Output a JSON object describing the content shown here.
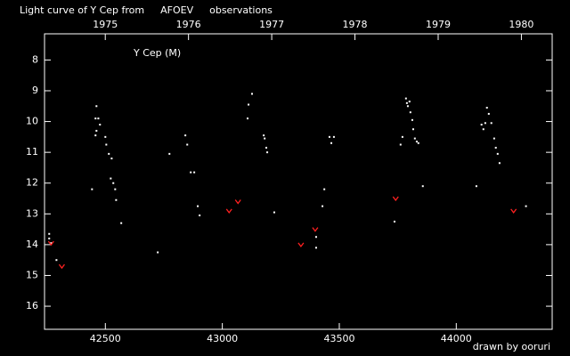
{
  "chart_data": {
    "type": "scatter",
    "title": [
      "Light curve of Y Cep from",
      "AFOEV",
      "observations"
    ],
    "title_colors": [
      "#ffffff",
      "#ffff00",
      "#ffffff"
    ],
    "annotation": "Y Cep (M)",
    "credit": "drawn by ooruri",
    "credit_color": "#00ffff",
    "background": "#000000",
    "axis_color": "#ffffff",
    "xlim": [
      42240,
      44410
    ],
    "xticks": [
      42500,
      43000,
      43500,
      44000
    ],
    "x2lim": [
      1974.27,
      1980.37
    ],
    "x2ticks": [
      1975,
      1976,
      1977,
      1978,
      1979,
      1980
    ],
    "ylim": [
      16.75,
      7.15
    ],
    "yticks": [
      8,
      9,
      10,
      11,
      12,
      13,
      14,
      15,
      16
    ],
    "series": [
      {
        "color": "#ffffff",
        "marker": "dot",
        "x": [
          42260,
          42260,
          42268,
          42291,
          42443,
          42462,
          42458,
          42470,
          42462,
          42458,
          42477,
          42500,
          42504,
          42515,
          42527,
          42523,
          42534,
          42542,
          42546,
          42568,
          42724,
          42774,
          42842,
          42850,
          42865,
          42880,
          42895,
          42903,
          43108,
          43112,
          43127,
          43177,
          43181,
          43188,
          43192,
          43222,
          43401,
          43401,
          43428,
          43436,
          43458,
          43466,
          43477,
          43736,
          43762,
          43770,
          43785,
          43789,
          43793,
          43800,
          43804,
          43812,
          43816,
          43823,
          43831,
          43838,
          43857,
          44086,
          44108,
          44116,
          44124,
          44131,
          44139,
          44150,
          44162,
          44169,
          44177,
          44185,
          44298
        ],
        "values": [
          13.65,
          13.8,
          13.95,
          14.5,
          12.2,
          9.5,
          9.9,
          9.9,
          10.3,
          10.45,
          10.1,
          10.5,
          10.75,
          11.05,
          11.2,
          11.85,
          12.0,
          12.2,
          12.55,
          13.3,
          14.25,
          11.05,
          10.45,
          10.75,
          11.65,
          11.65,
          12.75,
          13.05,
          9.9,
          9.45,
          9.1,
          10.45,
          10.55,
          10.85,
          11.0,
          12.95,
          14.1,
          13.75,
          12.75,
          12.2,
          10.5,
          10.7,
          10.5,
          13.25,
          10.75,
          10.5,
          9.25,
          9.4,
          9.5,
          9.35,
          9.7,
          9.95,
          10.25,
          10.55,
          10.65,
          10.7,
          12.1,
          12.1,
          10.1,
          10.25,
          10.05,
          9.55,
          9.75,
          10.05,
          10.55,
          10.85,
          11.05,
          11.35,
          12.75
        ]
      },
      {
        "color": "#ff2020",
        "marker": "v",
        "x": [
          42268,
          42314,
          43029,
          43067,
          43336,
          43397,
          43741,
          44245
        ],
        "values": [
          13.95,
          14.7,
          12.9,
          12.6,
          14.0,
          13.5,
          12.5,
          12.9
        ]
      }
    ]
  }
}
